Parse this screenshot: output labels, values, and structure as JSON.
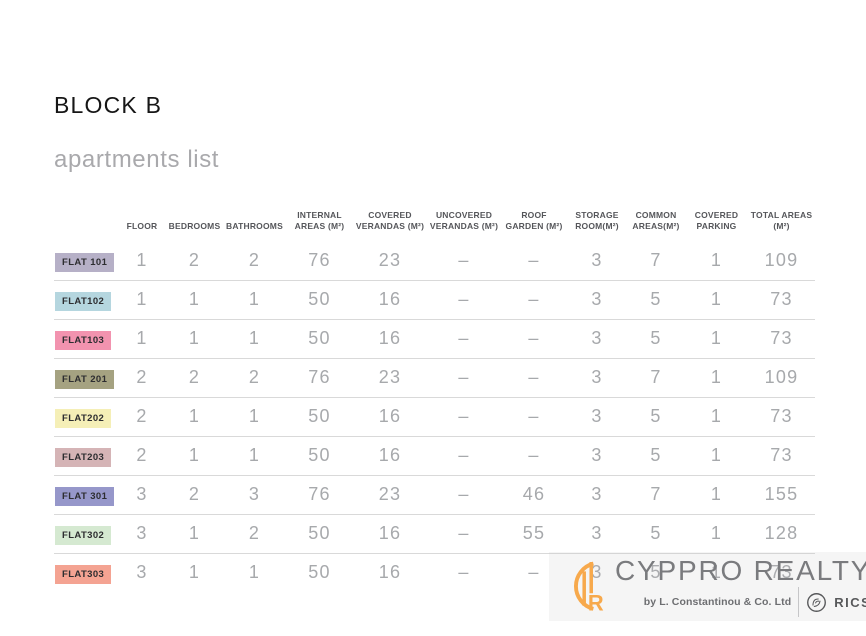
{
  "page": {
    "title": "BLOCK B",
    "subtitle": "apartments list"
  },
  "table": {
    "headers": [
      "FLOOR",
      "BEDROOMS",
      "BATHROOMS",
      "INTERNAL AREAS (M²)",
      "COVERED VERANDAS (M²)",
      "UNCOVERED VERANDAS (M²)",
      "ROOF GARDEN (M²)",
      "STORAGE ROOM(M²)",
      "COMMON AREAS(M²)",
      "COVERED PARKING",
      "TOTAL AREAS (M²)"
    ],
    "rows": [
      {
        "flat": "FLAT 101",
        "color": "#b6b0c7",
        "values": [
          "1",
          "2",
          "2",
          "76",
          "23",
          "–",
          "–",
          "3",
          "7",
          "1",
          "109"
        ]
      },
      {
        "flat": "FLAT102",
        "color": "#b5d6df",
        "values": [
          "1",
          "1",
          "1",
          "50",
          "16",
          "–",
          "–",
          "3",
          "5",
          "1",
          "73"
        ]
      },
      {
        "flat": "FLAT103",
        "color": "#f293af",
        "values": [
          "1",
          "1",
          "1",
          "50",
          "16",
          "–",
          "–",
          "3",
          "5",
          "1",
          "73"
        ]
      },
      {
        "flat": "FLAT 201",
        "color": "#a5a281",
        "values": [
          "2",
          "2",
          "2",
          "76",
          "23",
          "–",
          "–",
          "3",
          "7",
          "1",
          "109"
        ]
      },
      {
        "flat": "FLAT202",
        "color": "#f5efb7",
        "values": [
          "2",
          "1",
          "1",
          "50",
          "16",
          "–",
          "–",
          "3",
          "5",
          "1",
          "73"
        ]
      },
      {
        "flat": "FLAT203",
        "color": "#d5b4b6",
        "values": [
          "2",
          "1",
          "1",
          "50",
          "16",
          "–",
          "–",
          "3",
          "5",
          "1",
          "73"
        ]
      },
      {
        "flat": "FLAT 301",
        "color": "#9697ca",
        "values": [
          "3",
          "2",
          "3",
          "76",
          "23",
          "–",
          "46",
          "3",
          "7",
          "1",
          "155"
        ]
      },
      {
        "flat": "FLAT302",
        "color": "#d5e9d1",
        "values": [
          "3",
          "1",
          "2",
          "50",
          "16",
          "–",
          "55",
          "3",
          "5",
          "1",
          "128"
        ]
      },
      {
        "flat": "FLAT303",
        "color": "#f4a392",
        "values": [
          "3",
          "1",
          "1",
          "50",
          "16",
          "–",
          "–",
          "3",
          "5",
          "1",
          "73"
        ]
      }
    ]
  },
  "footer_logo": {
    "brand": "CYPPRO REALTY",
    "byline": "by L. Constantinou & Co. Ltd",
    "rics_label": "RICS",
    "accent_color": "#f7a94c",
    "text_color": "#7a7b7e"
  }
}
